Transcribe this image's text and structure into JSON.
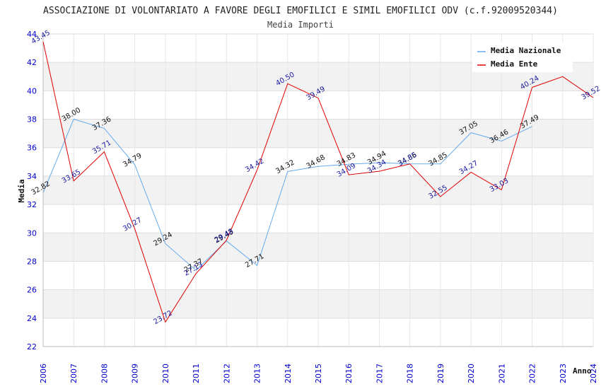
{
  "chart_data": {
    "type": "line",
    "title": "ASSOCIAZIONE DI VOLONTARIATO A FAVORE DEGLI EMOFILICI E SIMIL EMOFILICI ODV (c.f.92009520344)",
    "subtitle": "Media Importi",
    "xlabel": "Anno",
    "ylabel": "Media",
    "ylim": [
      22,
      44
    ],
    "yticks": [
      22,
      24,
      26,
      28,
      30,
      32,
      34,
      36,
      38,
      40,
      42,
      44
    ],
    "grid": true,
    "legend_position": "top-right",
    "x": [
      2006,
      2007,
      2008,
      2009,
      2010,
      2011,
      2012,
      2013,
      2014,
      2015,
      2016,
      2017,
      2018,
      2019,
      2020,
      2021,
      2022,
      2023,
      2024
    ],
    "series": [
      {
        "name": "Media Nazionale",
        "color": "#66aaee",
        "values": [
          32.82,
          38.0,
          37.36,
          34.79,
          29.24,
          27.37,
          29.43,
          27.71,
          34.32,
          34.68,
          34.83,
          34.94,
          34.86,
          34.85,
          37.05,
          36.46,
          37.49,
          null,
          null
        ],
        "labels": [
          "32.82",
          "38.00",
          "37.36",
          "34.79",
          "29.24",
          "27.37",
          "29.43",
          "27.71",
          "34.32",
          "34.68",
          "34.83",
          "34.94",
          "34.86",
          "34.85",
          "37.05",
          "36.46",
          "37.49",
          "",
          ""
        ]
      },
      {
        "name": "Media Ente",
        "color": "#dd0000",
        "values": [
          43.45,
          33.65,
          35.71,
          30.27,
          23.72,
          27.13,
          29.48,
          34.42,
          40.5,
          39.49,
          34.09,
          34.34,
          34.85,
          32.55,
          34.27,
          33.03,
          40.24,
          41.0,
          39.52
        ],
        "labels": [
          "43.45",
          "33.65",
          "35.71",
          "30.27",
          "23.72",
          "27.13",
          "29.48",
          "34.42",
          "40.50",
          "39.49",
          "34.09",
          "34.34",
          "34.85",
          "32.55",
          "34.27",
          "33.03",
          "40.24",
          "",
          "39.52"
        ]
      }
    ]
  }
}
